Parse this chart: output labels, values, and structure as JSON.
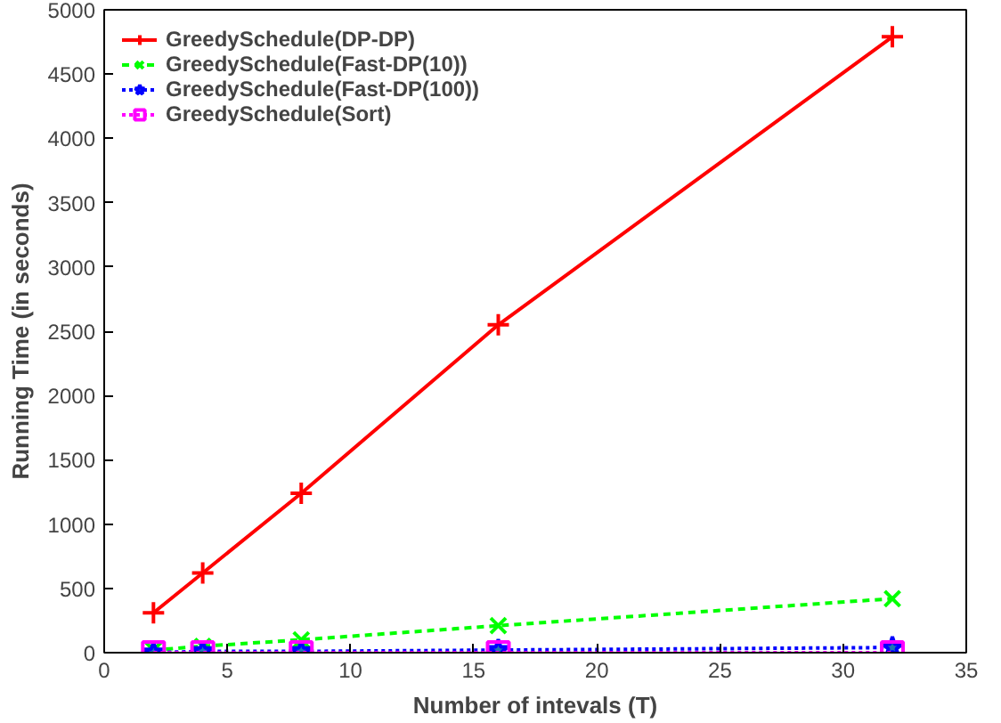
{
  "chart_data": {
    "type": "line",
    "xlabel": "Number of intevals (T)",
    "ylabel": "Running Time (in seconds)",
    "x": [
      2,
      4,
      8,
      16,
      32
    ],
    "series": [
      {
        "name": "GreedySchedule(DP-DP)",
        "color": "#ff0000",
        "values": [
          310,
          620,
          1240,
          2550,
          4790
        ],
        "marker": "cross",
        "line_style": "solid"
      },
      {
        "name": "GreedySchedule(Fast-DP(10))",
        "color": "#00ff00",
        "values": [
          20,
          50,
          100,
          210,
          420
        ],
        "marker": "x",
        "line_style": "dashed"
      },
      {
        "name": "GreedySchedule(Fast-DP(100))",
        "color": "#0000ff",
        "values": [
          0,
          10,
          10,
          20,
          40
        ],
        "marker": "star",
        "line_style": "dotted"
      },
      {
        "name": "GreedySchedule(Sort)",
        "color": "#ff00ff",
        "values": [
          0,
          0,
          0,
          0,
          0
        ],
        "marker": "square",
        "line_style": "dotted"
      }
    ],
    "xlim": [
      0,
      35
    ],
    "ylim": [
      0,
      5000
    ],
    "xticks": [
      0,
      5,
      10,
      15,
      20,
      25,
      30,
      35
    ],
    "yticks": [
      0,
      500,
      1000,
      1500,
      2000,
      2500,
      3000,
      3500,
      4000,
      4500,
      5000
    ],
    "grid": false,
    "legend": "top left"
  }
}
